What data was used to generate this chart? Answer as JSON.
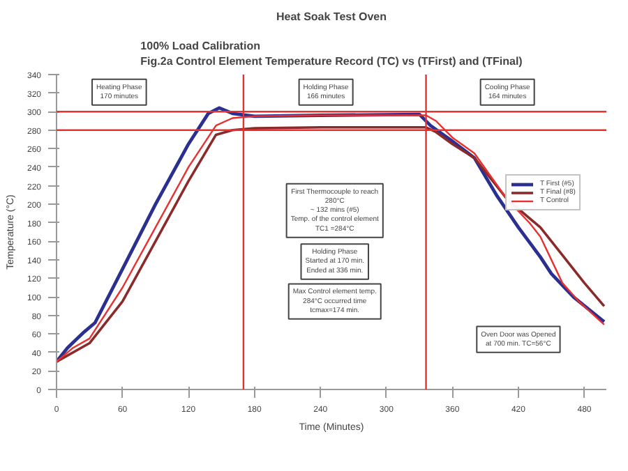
{
  "chart_data": {
    "type": "line",
    "title": "Heat Soak Test Oven",
    "subtitle": "100% Load Calibration\nFig.2a Control Element Temperature Record (TC) vs (TFirst) and (TFinal)",
    "xlabel": "Time (Minutes)",
    "ylabel": "Temperature (°C)",
    "xlim": [
      0,
      500
    ],
    "xticks": [
      0,
      60,
      120,
      180,
      240,
      300,
      360,
      420,
      480
    ],
    "ylim": [
      0,
      340
    ],
    "yticks": [
      0,
      20,
      40,
      60,
      80,
      100,
      120,
      140,
      160,
      180,
      200,
      220,
      240,
      260,
      280,
      300,
      320,
      340
    ],
    "grid": false,
    "legend": "right",
    "marker": "none",
    "line_style": "solid",
    "series": [
      {
        "name": "T First (#5)",
        "color": "#2b2f8f",
        "x": [
          0,
          10,
          25,
          35,
          60,
          90,
          120,
          138,
          148,
          160,
          180,
          240,
          330,
          340,
          360,
          380,
          400,
          420,
          440,
          450,
          470,
          498
        ],
        "values": [
          30,
          45,
          62,
          72,
          130,
          200,
          265,
          298,
          304,
          298,
          295,
          296,
          297,
          285,
          268,
          250,
          210,
          175,
          143,
          125,
          100,
          73
        ]
      },
      {
        "name": "T Final (#8)",
        "color": "#8b2a2a",
        "x": [
          0,
          30,
          60,
          90,
          120,
          145,
          160,
          180,
          240,
          336,
          345,
          360,
          380,
          410,
          440,
          460,
          480,
          498
        ],
        "values": [
          30,
          50,
          95,
          160,
          225,
          275,
          280,
          282,
          283,
          283,
          278,
          265,
          250,
          205,
          175,
          145,
          115,
          90
        ]
      },
      {
        "name": "T Control",
        "color": "#e8302f",
        "x": [
          0,
          15,
          30,
          60,
          90,
          120,
          145,
          160,
          180,
          240,
          336,
          345,
          360,
          380,
          410,
          430,
          440,
          450,
          460,
          475,
          498
        ],
        "values": [
          30,
          45,
          55,
          110,
          175,
          240,
          285,
          293,
          295,
          296,
          296,
          290,
          272,
          255,
          205,
          180,
          165,
          140,
          115,
          95,
          70
        ]
      }
    ],
    "ref_lines": [
      {
        "axis": "y",
        "value": 300,
        "color": "#e8302f"
      },
      {
        "axis": "y",
        "value": 280,
        "color": "#e8302f"
      },
      {
        "axis": "x",
        "value": 170,
        "color": "#e8302f"
      },
      {
        "axis": "x",
        "value": 336,
        "color": "#e8302f"
      }
    ],
    "annotations": [
      "Heating Phase\n170 minutes",
      "Holding Phase\n166 minutes",
      "Cooling Phase\n164 minutes",
      "First Thermocouple to reach\n280°C\n~ 132 mins (#5)\nTemp. of the control element\nTC1 =284°C",
      "Holding Phase\nStarted at 170 min.\nEnded at 336 min.",
      "Max Control element temp.\n284°C occurred time\ntcmax=174 min.",
      "Oven Door was Opened\nat 700 min. TC=56°C"
    ]
  }
}
